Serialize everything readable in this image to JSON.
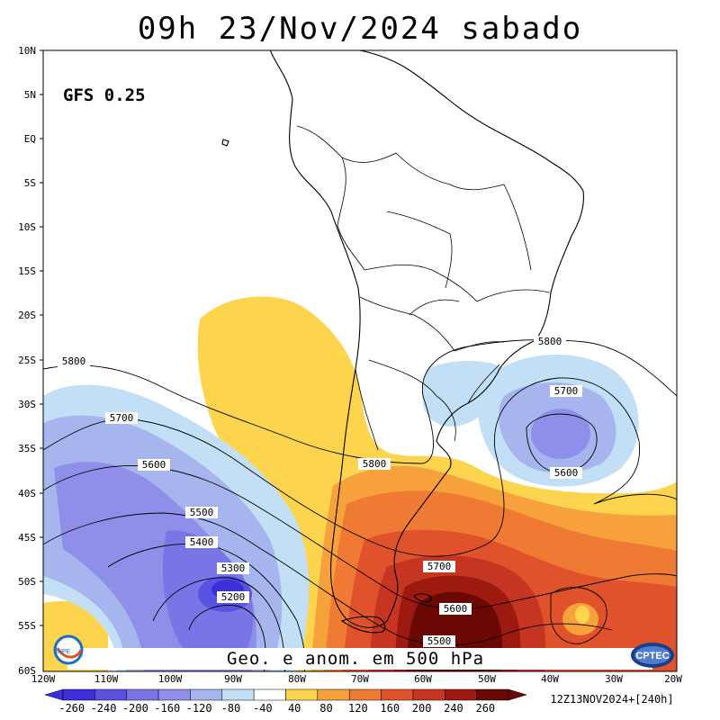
{
  "title": "09h 23/Nov/2024 sabado",
  "model_label": "GFS 0.25",
  "caption": "Geo. e anom. em 500 hPa",
  "run_label": "12Z13NOV2024+[240h]",
  "logos": {
    "left": "INPE",
    "right": "CPTEC"
  },
  "lat_labels": [
    "10N",
    "5N",
    "EQ",
    "5S",
    "10S",
    "15S",
    "20S",
    "25S",
    "30S",
    "35S",
    "40S",
    "45S",
    "50S",
    "55S",
    "60S"
  ],
  "lon_labels": [
    "120W",
    "110W",
    "100W",
    "90W",
    "80W",
    "70W",
    "60W",
    "50W",
    "40W",
    "30W",
    "20W"
  ],
  "contour_labels": [
    "5800",
    "5700",
    "5600",
    "5500",
    "5400",
    "5300",
    "5200",
    "5800",
    "5800",
    "5700",
    "5600",
    "5700",
    "5600",
    "5500"
  ],
  "colorbar": {
    "ticks": [
      "-260",
      "-240",
      "-200",
      "-160",
      "-120",
      "-80",
      "-40",
      "40",
      "80",
      "120",
      "160",
      "200",
      "240",
      "260"
    ],
    "colors": [
      "#3a2fd8",
      "#5a52e0",
      "#7a75e6",
      "#8f8fea",
      "#a7b5ee",
      "#c3dff5",
      "#ffffff",
      "#fcd44e",
      "#f7a13c",
      "#ee7a33",
      "#e0522b",
      "#c63521",
      "#9d1a10",
      "#6a0804"
    ]
  }
}
